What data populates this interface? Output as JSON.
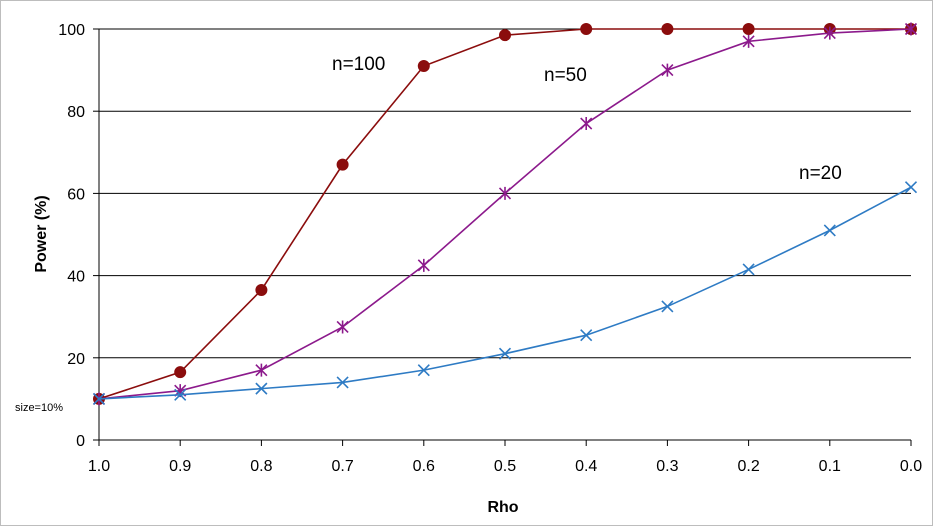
{
  "chart_data": {
    "type": "line",
    "title": "",
    "xlabel": "Rho",
    "ylabel": "Power (%)",
    "x": [
      1.0,
      0.9,
      0.8,
      0.7,
      0.6,
      0.5,
      0.4,
      0.3,
      0.2,
      0.1,
      0.0
    ],
    "x_tick_labels": [
      "1.0",
      "0.9",
      "0.8",
      "0.7",
      "0.6",
      "0.5",
      "0.4",
      "0.3",
      "0.2",
      "0.1",
      "0.0"
    ],
    "y_tick_labels": [
      "0",
      "20",
      "40",
      "60",
      "80",
      "100"
    ],
    "ylim": [
      0,
      100
    ],
    "xlim": [
      1.0,
      0.0
    ],
    "grid": "horizontal",
    "annotation": "size=10%",
    "series": [
      {
        "name": "n=100",
        "marker": "circle",
        "color": "#8b0d0d",
        "values": [
          10,
          16.5,
          36.5,
          67,
          91,
          98.5,
          100,
          100,
          100,
          100,
          100
        ]
      },
      {
        "name": "n=50",
        "marker": "asterisk",
        "color": "#8c1a8c",
        "values": [
          10,
          12,
          17,
          27.5,
          42.5,
          60,
          77,
          90,
          97,
          99,
          100
        ]
      },
      {
        "name": "n=20",
        "marker": "x",
        "color": "#2e7bc4",
        "values": [
          10,
          11,
          12.5,
          14,
          17,
          21,
          25.5,
          32.5,
          41.5,
          51,
          61.5
        ]
      }
    ]
  }
}
